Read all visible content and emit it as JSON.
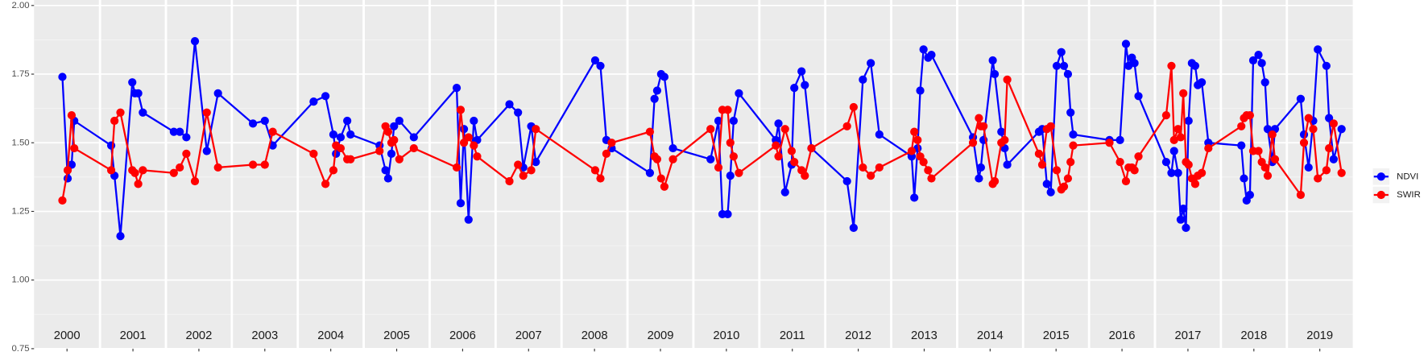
{
  "chart_data": {
    "type": "line",
    "panels": [
      2000,
      2001,
      2002,
      2003,
      2004,
      2005,
      2006,
      2007,
      2008,
      2009,
      2010,
      2011,
      2012,
      2013,
      2014,
      2015,
      2016,
      2017,
      2018,
      2019
    ],
    "xlim": [
      2000,
      2020
    ],
    "ylim": [
      0.75,
      2.0
    ],
    "yticks": [
      0.75,
      {
        "value": 1.0,
        "label": "1.00"
      },
      1.25,
      {
        "value": 1.5,
        "label": "1.50"
      },
      1.75,
      {
        "value": 2.0,
        "label": "2.00"
      }
    ],
    "grid": true,
    "legend": "right",
    "x": [
      2000.43,
      2000.51,
      2000.57,
      2000.61,
      2001.17,
      2001.22,
      2001.31,
      2001.49,
      2001.53,
      2001.58,
      2001.65,
      2002.12,
      2002.21,
      2002.31,
      2002.44,
      2002.62,
      2002.79,
      2003.32,
      2003.5,
      2003.62,
      2004.24,
      2004.42,
      2004.54,
      2004.58,
      2004.65,
      2004.75,
      2004.8,
      2005.24,
      2005.33,
      2005.37,
      2005.42,
      2005.46,
      2005.54,
      2005.76,
      2006.41,
      2006.47,
      2006.52,
      2006.59,
      2006.67,
      2006.72,
      2007.21,
      2007.34,
      2007.42,
      2007.54,
      2007.61,
      2008.51,
      2008.59,
      2008.68,
      2008.76,
      2009.34,
      2009.41,
      2009.45,
      2009.51,
      2009.56,
      2009.69,
      2010.26,
      2010.38,
      2010.44,
      2010.52,
      2010.56,
      2010.61,
      2010.69,
      2011.25,
      2011.29,
      2011.39,
      2011.49,
      2011.53,
      2011.64,
      2011.69,
      2011.79,
      2012.33,
      2012.43,
      2012.57,
      2012.69,
      2012.82,
      2013.31,
      2013.35,
      2013.4,
      2013.44,
      2013.49,
      2013.56,
      2013.61,
      2014.24,
      2014.33,
      2014.36,
      2014.4,
      2014.54,
      2014.57,
      2014.67,
      2014.72,
      2014.76,
      2015.24,
      2015.29,
      2015.36,
      2015.42,
      2015.51,
      2015.58,
      2015.62,
      2015.68,
      2015.72,
      2015.76,
      2016.31,
      2016.47,
      2016.56,
      2016.6,
      2016.65,
      2016.69,
      2016.75,
      2017.17,
      2017.25,
      2017.29,
      2017.35,
      2017.39,
      2017.43,
      2017.47,
      2017.51,
      2017.56,
      2017.61,
      2017.65,
      2017.71,
      2017.81,
      2018.31,
      2018.35,
      2018.39,
      2018.44,
      2018.49,
      2018.57,
      2018.62,
      2018.67,
      2018.71,
      2018.78,
      2018.82,
      2019.21,
      2019.26,
      2019.33,
      2019.4,
      2019.47,
      2019.6,
      2019.64,
      2019.71,
      2019.83
    ],
    "series": [
      {
        "name": "NDVI",
        "color": "#0000ff",
        "values": [
          1.74,
          1.37,
          1.42,
          1.58,
          1.49,
          1.38,
          1.16,
          1.72,
          1.68,
          1.68,
          1.61,
          1.54,
          1.54,
          1.52,
          1.87,
          1.47,
          1.68,
          1.57,
          1.58,
          1.49,
          1.65,
          1.67,
          1.53,
          1.46,
          1.52,
          1.58,
          1.53,
          1.49,
          1.4,
          1.37,
          1.46,
          1.56,
          1.58,
          1.52,
          1.7,
          1.28,
          1.55,
          1.22,
          1.58,
          1.51,
          1.64,
          1.61,
          1.41,
          1.56,
          1.43,
          1.8,
          1.78,
          1.51,
          1.48,
          1.39,
          1.66,
          1.69,
          1.75,
          1.74,
          1.48,
          1.44,
          1.58,
          1.24,
          1.24,
          1.38,
          1.58,
          1.68,
          1.51,
          1.57,
          1.32,
          1.42,
          1.7,
          1.76,
          1.71,
          1.48,
          1.36,
          1.19,
          1.73,
          1.79,
          1.53,
          1.45,
          1.3,
          1.48,
          1.69,
          1.84,
          1.81,
          1.82,
          1.52,
          1.37,
          1.41,
          1.51,
          1.8,
          1.75,
          1.54,
          1.48,
          1.42,
          1.54,
          1.55,
          1.35,
          1.32,
          1.78,
          1.83,
          1.78,
          1.75,
          1.61,
          1.53,
          1.51,
          1.51,
          1.86,
          1.78,
          1.81,
          1.79,
          1.67,
          1.43,
          1.39,
          1.47,
          1.39,
          1.22,
          1.26,
          1.19,
          1.58,
          1.79,
          1.78,
          1.71,
          1.72,
          1.5,
          1.49,
          1.37,
          1.29,
          1.31,
          1.8,
          1.82,
          1.79,
          1.72,
          1.55,
          1.43,
          1.55,
          1.66,
          1.53,
          1.41,
          1.58,
          1.84,
          1.78,
          1.59,
          1.44,
          1.55
        ]
      },
      {
        "name": "SWIR",
        "color": "#ff0000",
        "values": [
          1.29,
          1.4,
          1.6,
          1.48,
          1.4,
          1.58,
          1.61,
          1.4,
          1.39,
          1.35,
          1.4,
          1.39,
          1.41,
          1.46,
          1.36,
          1.61,
          1.41,
          1.42,
          1.42,
          1.54,
          1.46,
          1.35,
          1.4,
          1.49,
          1.48,
          1.44,
          1.44,
          1.47,
          1.56,
          1.54,
          1.5,
          1.51,
          1.44,
          1.48,
          1.41,
          1.62,
          1.5,
          1.52,
          1.49,
          1.45,
          1.36,
          1.42,
          1.38,
          1.4,
          1.55,
          1.4,
          1.37,
          1.46,
          1.5,
          1.54,
          1.45,
          1.44,
          1.37,
          1.34,
          1.44,
          1.55,
          1.41,
          1.62,
          1.62,
          1.5,
          1.45,
          1.39,
          1.49,
          1.45,
          1.55,
          1.47,
          1.43,
          1.4,
          1.38,
          1.48,
          1.56,
          1.63,
          1.41,
          1.38,
          1.41,
          1.47,
          1.54,
          1.51,
          1.45,
          1.43,
          1.4,
          1.37,
          1.5,
          1.59,
          1.56,
          1.56,
          1.35,
          1.36,
          1.5,
          1.51,
          1.73,
          1.46,
          1.42,
          1.55,
          1.56,
          1.4,
          1.33,
          1.34,
          1.37,
          1.43,
          1.49,
          1.5,
          1.43,
          1.36,
          1.41,
          1.41,
          1.4,
          1.45,
          1.6,
          1.78,
          1.51,
          1.55,
          1.52,
          1.68,
          1.43,
          1.42,
          1.37,
          1.35,
          1.38,
          1.39,
          1.48,
          1.56,
          1.59,
          1.6,
          1.6,
          1.47,
          1.47,
          1.43,
          1.41,
          1.38,
          1.53,
          1.44,
          1.31,
          1.5,
          1.59,
          1.55,
          1.37,
          1.4,
          1.48,
          1.57,
          1.39
        ]
      }
    ]
  }
}
